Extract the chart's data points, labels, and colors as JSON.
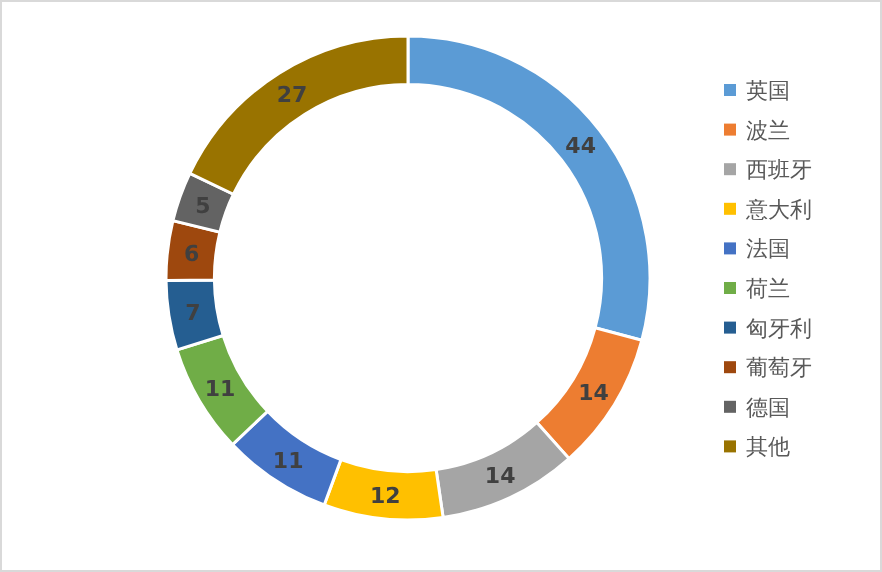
{
  "chart_data": {
    "type": "donut",
    "categories": [
      "英国",
      "波兰",
      "西班牙",
      "意大利",
      "法国",
      "荷兰",
      "匈牙利",
      "葡萄牙",
      "德国",
      "其他"
    ],
    "values": [
      44,
      14,
      14,
      12,
      11,
      11,
      7,
      6,
      5,
      27
    ],
    "colors": [
      "#5b9bd5",
      "#ed7d31",
      "#a5a5a5",
      "#ffc000",
      "#4472c4",
      "#70ad47",
      "#255e91",
      "#9e480e",
      "#636363",
      "#997300"
    ],
    "data_labels": true,
    "legend": "right"
  }
}
